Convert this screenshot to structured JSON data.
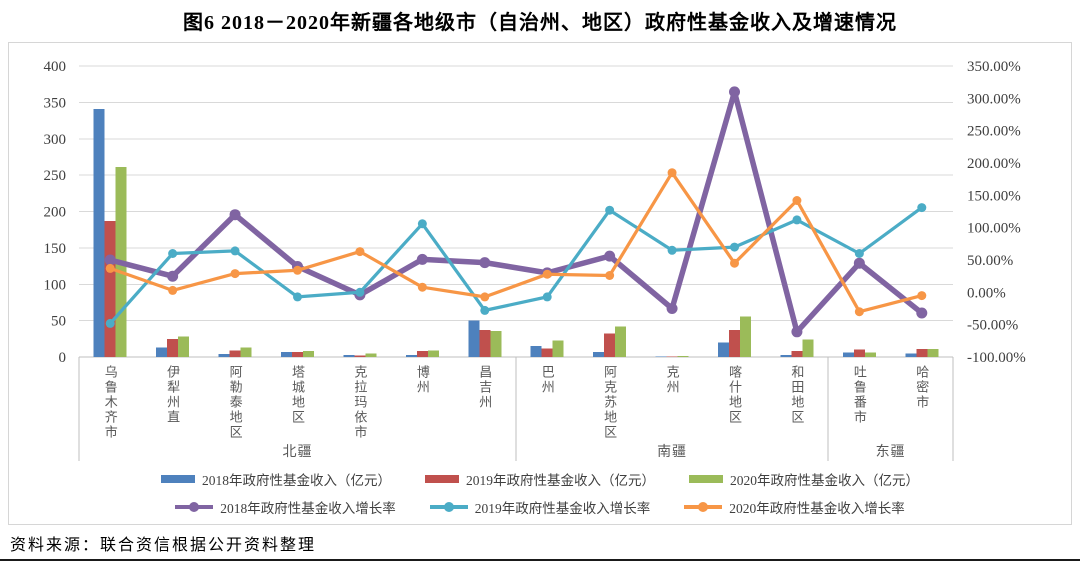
{
  "title": "图6 2018－2020年新疆各地级市（自治州、地区）政府性基金收入及增速情况",
  "source": "资料来源：联合资信根据公开资料整理",
  "chart_data": {
    "type": "combo-bar-line",
    "categories": [
      "乌鲁木齐市",
      "伊犁州直",
      "阿勒泰地区",
      "塔城地区",
      "克拉玛依市",
      "博州",
      "昌吉州",
      "巴州",
      "阿克苏地区",
      "克州",
      "喀什地区",
      "和田地区",
      "吐鲁番市",
      "哈密市"
    ],
    "groups": [
      {
        "label": "北疆",
        "span": 7
      },
      {
        "label": "南疆",
        "span": 5
      },
      {
        "label": "东疆",
        "span": 2
      }
    ],
    "bar_series": [
      {
        "name": "2018年政府性基金收入（亿元）",
        "color": "#4E81BD",
        "values": [
          341,
          13,
          4,
          7,
          3,
          3,
          50,
          15,
          7,
          0.5,
          20,
          3,
          6,
          5
        ]
      },
      {
        "name": "2019年政府性基金收入（亿元）",
        "color": "#C0504D",
        "values": [
          187,
          25,
          9,
          7,
          2,
          8,
          37,
          12,
          32,
          0.5,
          37,
          8,
          10,
          11
        ]
      },
      {
        "name": "2020年政府性基金收入（亿元）",
        "color": "#9BBB59",
        "values": [
          261,
          28,
          13,
          8,
          5,
          9,
          36,
          23,
          42,
          1.5,
          56,
          24,
          6,
          11
        ]
      }
    ],
    "line_series": [
      {
        "name": "2018年政府性基金收入增长率",
        "color": "#8064A2",
        "values": [
          50,
          25,
          120,
          40,
          -4,
          51,
          46,
          30,
          56,
          -25,
          310,
          -61,
          45,
          -32
        ]
      },
      {
        "name": "2019年政府性基金收入增长率",
        "color": "#4BACC6",
        "values": [
          -48,
          60,
          64,
          -7,
          0,
          106,
          -28,
          -7,
          127,
          65,
          70,
          112,
          60,
          131
        ]
      },
      {
        "name": "2020年政府性基金收入增长率",
        "color": "#F79646",
        "values": [
          37,
          3,
          29,
          34,
          63,
          8,
          -7,
          28,
          26,
          185,
          45,
          142,
          -30,
          -5
        ]
      }
    ],
    "left_axis": {
      "min": 0,
      "max": 400,
      "step": 50,
      "ticks": [
        "400",
        "350",
        "300",
        "250",
        "200",
        "150",
        "100",
        "50",
        "0"
      ]
    },
    "right_axis": {
      "min": -100,
      "max": 350,
      "step": 50,
      "ticks": [
        "350.00%",
        "300.00%",
        "250.00%",
        "200.00%",
        "150.00%",
        "100.00%",
        "50.00%",
        "0.00%",
        "-50.00%",
        "-100.00%"
      ]
    },
    "grid": true,
    "legend_position": "bottom",
    "grid_color": "#d9d9d9",
    "axis_text_color": "#3f3f3f"
  }
}
